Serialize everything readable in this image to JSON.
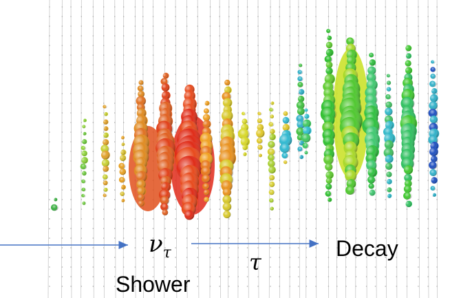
{
  "labels": {
    "nu": "ν",
    "nu_subscript": "τ",
    "tau": "τ",
    "decay": "Decay",
    "shower": "Shower"
  }
}
